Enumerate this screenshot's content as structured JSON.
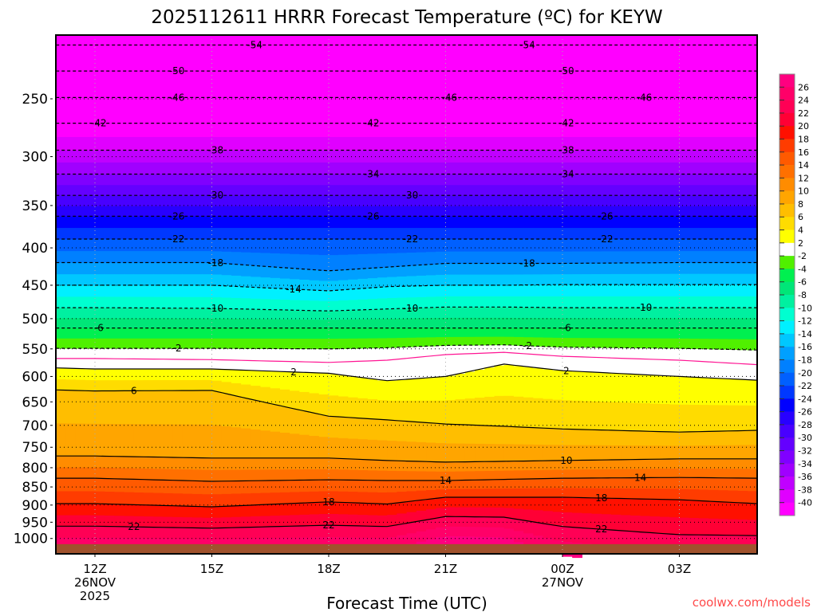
{
  "chart_data": {
    "type": "heatmap",
    "title": "2025112611 HRRR Forecast Temperature (ºC) for KEYW",
    "xlabel": "Forecast Time (UTC)",
    "ylabel": "",
    "xlim": [
      11,
      29
    ],
    "ylim": [
      204,
      1050
    ],
    "y_scale": "log",
    "y_ticks": [
      250,
      300,
      350,
      400,
      450,
      500,
      550,
      600,
      650,
      700,
      750,
      800,
      850,
      900,
      950,
      1000
    ],
    "y_tick_labels": [
      "250",
      "300",
      "350",
      "400",
      "450",
      "500",
      "550",
      "600",
      "650",
      "700",
      "750",
      "800",
      "850",
      "900",
      "950",
      "1000"
    ],
    "x_ticks": [
      {
        "hour": 12,
        "label": "12Z",
        "date": "26NOV",
        "year": "2025"
      },
      {
        "hour": 15,
        "label": "15Z"
      },
      {
        "hour": 18,
        "label": "18Z"
      },
      {
        "hour": 21,
        "label": "21Z"
      },
      {
        "hour": 24,
        "label": "00Z",
        "date": "27NOV"
      },
      {
        "hour": 27,
        "label": "03Z"
      }
    ],
    "surface_pressure": 1018,
    "times": [
      11,
      12,
      15,
      18,
      19.5,
      21,
      22.5,
      24,
      27,
      29
    ],
    "contours": [
      {
        "value": -54,
        "label": "-54",
        "pressure": 211,
        "label_at": [
          16.1,
          23.1
        ]
      },
      {
        "value": -50,
        "label": "-50",
        "pressure": 229,
        "label_at": [
          14.1,
          24.1
        ]
      },
      {
        "value": -46,
        "label": "-46",
        "pressure": 249,
        "label_at": [
          14.1,
          21.1,
          26.1
        ]
      },
      {
        "value": -42,
        "label": "-42",
        "pressure": 270,
        "label_at": [
          12.1,
          19.1,
          24.1
        ]
      },
      {
        "value": -38,
        "label": "-38",
        "pressure": 294,
        "label_at": [
          15.1,
          24.1
        ]
      },
      {
        "value": -34,
        "label": "-34",
        "pressure": 317,
        "label_at": [
          19.1,
          24.1
        ]
      },
      {
        "value": -30,
        "label": "-30",
        "pressure": 339,
        "label_at": [
          15.1,
          20.1
        ]
      },
      {
        "value": -26,
        "label": "-26",
        "pressure": 362,
        "label_at": [
          14.1,
          19.1,
          25.1
        ]
      },
      {
        "value": -22,
        "label": "-22",
        "pressure": 389,
        "label_at": [
          14.1,
          20.1,
          25.1
        ]
      },
      {
        "value": -18,
        "label": "-18",
        "pressure": [
          419,
          419,
          419,
          430,
          425,
          420,
          420,
          420,
          419,
          419
        ],
        "label_at": [
          15.1,
          23.1
        ]
      },
      {
        "value": -14,
        "label": "-14",
        "pressure": [
          450,
          450,
          450,
          458,
          452,
          450,
          450,
          449,
          449,
          449
        ],
        "label_at": [
          17.1
        ]
      },
      {
        "value": -10,
        "label": "-10",
        "pressure": [
          483,
          483,
          484,
          488,
          485,
          482,
          482,
          483,
          483,
          483
        ],
        "label_at": [
          15.1,
          20.1,
          26.1
        ]
      },
      {
        "value": -6,
        "label": "-6",
        "pressure": 515,
        "label_at": [
          12.1,
          24.1
        ]
      },
      {
        "value": -2,
        "label": "-2",
        "pressure": [
          549,
          549,
          549,
          550,
          548,
          544,
          543,
          547,
          549,
          552
        ],
        "label_at": [
          14.1,
          23.1
        ]
      },
      {
        "value": 0,
        "label": "",
        "color": "#ff1493",
        "pressure": [
          567,
          567,
          569,
          574,
          570,
          560,
          556,
          563,
          570,
          578
        ],
        "label_at": []
      },
      {
        "value": 2,
        "label": "2",
        "pressure": [
          584,
          586,
          586,
          594,
          608,
          600,
          577,
          589,
          600,
          607
        ],
        "label_at": [
          17.1,
          24.1
        ]
      },
      {
        "value": 6,
        "label": "6",
        "pressure": [
          626,
          628,
          627,
          680,
          688,
          697,
          702,
          708,
          715,
          711
        ],
        "label_at": [
          13
        ]
      },
      {
        "value": 10,
        "label": "10",
        "pressure": [
          771,
          771,
          776,
          776,
          782,
          786,
          784,
          782,
          778,
          778
        ],
        "label_at": [
          24.1
        ]
      },
      {
        "value": 14,
        "label": "14",
        "pressure": [
          827,
          827,
          835,
          831,
          833,
          833,
          830,
          827,
          825,
          827
        ],
        "label_at": [
          21,
          26
        ]
      },
      {
        "value": 18,
        "label": "18",
        "pressure": [
          896,
          896,
          905,
          891,
          897,
          878,
          878,
          878,
          885,
          896
        ],
        "label_at": [
          18,
          25
        ]
      },
      {
        "value": 22,
        "label": "22",
        "pressure": [
          962,
          962,
          968,
          959,
          963,
          933,
          935,
          963,
          988,
          991
        ],
        "label_at": [
          13,
          18,
          25
        ]
      }
    ],
    "colorbar": {
      "labels": [
        "26",
        "24",
        "22",
        "20",
        "18",
        "16",
        "14",
        "12",
        "10",
        "8",
        "6",
        "4",
        "2",
        "-2",
        "-4",
        "-6",
        "-8",
        "-10",
        "-12",
        "-14",
        "-16",
        "-18",
        "-20",
        "-22",
        "-24",
        "-26",
        "-28",
        "-30",
        "-32",
        "-34",
        "-36",
        "-38",
        "-40"
      ],
      "bins": [
        {
          "lo": 26,
          "hi": 99,
          "color": "#ff0080"
        },
        {
          "lo": 24,
          "hi": 26,
          "color": "#ff0068"
        },
        {
          "lo": 22,
          "hi": 24,
          "color": "#ff0055"
        },
        {
          "lo": 20,
          "hi": 22,
          "color": "#ff0035"
        },
        {
          "lo": 18,
          "hi": 20,
          "color": "#ff1000"
        },
        {
          "lo": 16,
          "hi": 18,
          "color": "#ff3c00"
        },
        {
          "lo": 14,
          "hi": 16,
          "color": "#ff5a00"
        },
        {
          "lo": 12,
          "hi": 14,
          "color": "#ff7000"
        },
        {
          "lo": 10,
          "hi": 12,
          "color": "#ff8c00"
        },
        {
          "lo": 8,
          "hi": 10,
          "color": "#ffa500"
        },
        {
          "lo": 6,
          "hi": 8,
          "color": "#ffbe00"
        },
        {
          "lo": 4,
          "hi": 6,
          "color": "#ffdc00"
        },
        {
          "lo": 2,
          "hi": 4,
          "color": "#ffff00"
        },
        {
          "lo": -2,
          "hi": 2,
          "color": "#ffffff"
        },
        {
          "lo": -4,
          "hi": -2,
          "color": "#50f000"
        },
        {
          "lo": -6,
          "hi": -4,
          "color": "#00f050"
        },
        {
          "lo": -8,
          "hi": -6,
          "color": "#00e678"
        },
        {
          "lo": -10,
          "hi": -8,
          "color": "#00f0a0"
        },
        {
          "lo": -12,
          "hi": -10,
          "color": "#00ffd0"
        },
        {
          "lo": -14,
          "hi": -12,
          "color": "#00f0ff"
        },
        {
          "lo": -16,
          "hi": -14,
          "color": "#00c8ff"
        },
        {
          "lo": -18,
          "hi": -16,
          "color": "#00a0ff"
        },
        {
          "lo": -20,
          "hi": -18,
          "color": "#0080ff"
        },
        {
          "lo": -22,
          "hi": -20,
          "color": "#0060ff"
        },
        {
          "lo": -24,
          "hi": -22,
          "color": "#0038ff"
        },
        {
          "lo": -26,
          "hi": -24,
          "color": "#0000ff"
        },
        {
          "lo": -28,
          "hi": -26,
          "color": "#2800ff"
        },
        {
          "lo": -30,
          "hi": -28,
          "color": "#4800ff"
        },
        {
          "lo": -32,
          "hi": -30,
          "color": "#6400ff"
        },
        {
          "lo": -34,
          "hi": -32,
          "color": "#8000ff"
        },
        {
          "lo": -36,
          "hi": -34,
          "color": "#a000ff"
        },
        {
          "lo": -38,
          "hi": -36,
          "color": "#c000ff"
        },
        {
          "lo": -40,
          "hi": -38,
          "color": "#e000ff"
        },
        {
          "lo": -99,
          "hi": -40,
          "color": "#ff00ff"
        }
      ]
    },
    "ground_color": "#a0522d"
  },
  "watermark": "coolwx.com/models"
}
